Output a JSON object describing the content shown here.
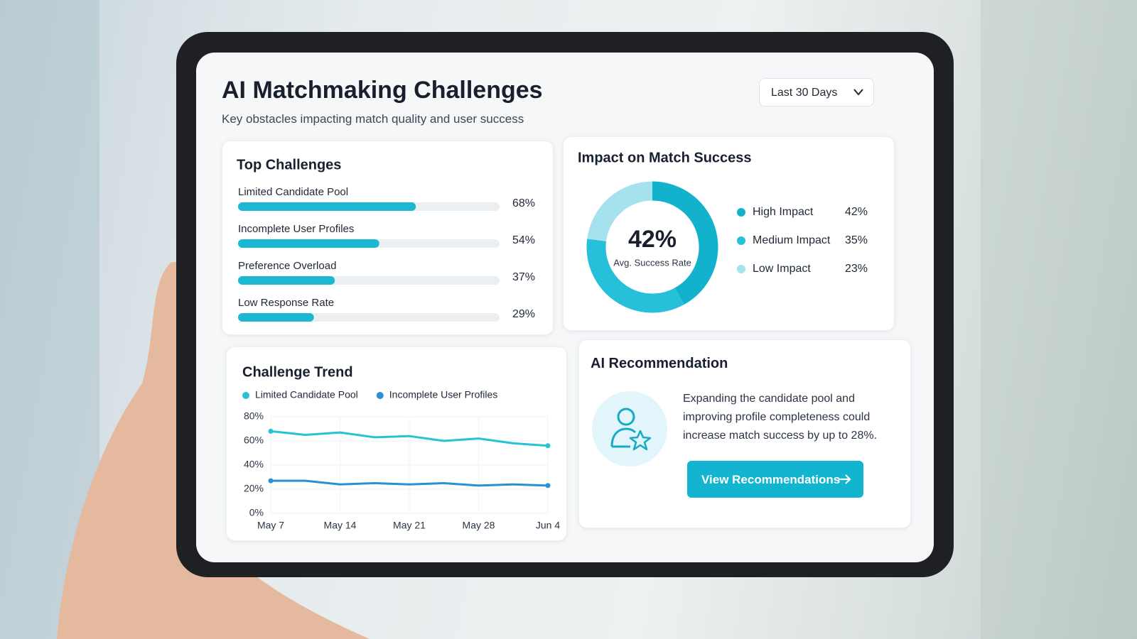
{
  "header": {
    "title": "AI Matchmaking Challenges",
    "subtitle": "Key obstacles impacting match quality and user success"
  },
  "filter": {
    "label": "Last 30 Days"
  },
  "chart_data": [
    {
      "type": "bar",
      "orientation": "horizontal",
      "title": "Top Challenges",
      "categories": [
        "Limited Candidate Pool",
        "Incomplete User Profiles",
        "Preference Overload",
        "Low Response Rate"
      ],
      "values": [
        68,
        54,
        37,
        29
      ],
      "value_labels": [
        "68%",
        "54%",
        "37%",
        "29%"
      ],
      "color": "#1cb8d3",
      "xlim": [
        0,
        100
      ]
    },
    {
      "type": "pie",
      "donut": true,
      "title": "Impact on Match Success",
      "center_value": "42%",
      "center_label": "Avg. Success Rate",
      "categories": [
        "High Impact",
        "Medium Impact",
        "Low Impact"
      ],
      "values": [
        42,
        35,
        23
      ],
      "value_labels": [
        "42%",
        "35%",
        "23%"
      ],
      "colors": [
        "#12b2cc",
        "#27c0da",
        "#a6e2ee"
      ]
    },
    {
      "type": "line",
      "title": "Challenge Trend",
      "x": [
        "May 7",
        null,
        "May 14",
        null,
        "May 21",
        null,
        "May 28",
        null,
        "Jun 4"
      ],
      "series": [
        {
          "name": "Limited Candidate Pool",
          "color": "#27c2d3",
          "values": [
            68,
            65,
            67,
            63,
            64,
            60,
            62,
            58,
            56
          ]
        },
        {
          "name": "Incomplete User Profiles",
          "color": "#2a8fd4",
          "values": [
            27,
            27,
            24,
            25,
            24,
            25,
            23,
            24,
            23
          ]
        }
      ],
      "ylim": [
        0,
        80
      ],
      "yticks": [
        {
          "value": 0,
          "label": "0%"
        },
        {
          "value": 20,
          "label": "20%"
        },
        {
          "value": 40,
          "label": "40%"
        },
        {
          "value": 60,
          "label": "60%"
        },
        {
          "value": 80,
          "label": "80%"
        }
      ],
      "grid": true
    }
  ],
  "recommendation": {
    "title": "AI Recommendation",
    "text": "Expanding the candidate pool and improving profile completeness could increase match success by up to 28%.",
    "button": "View Recommendations"
  }
}
